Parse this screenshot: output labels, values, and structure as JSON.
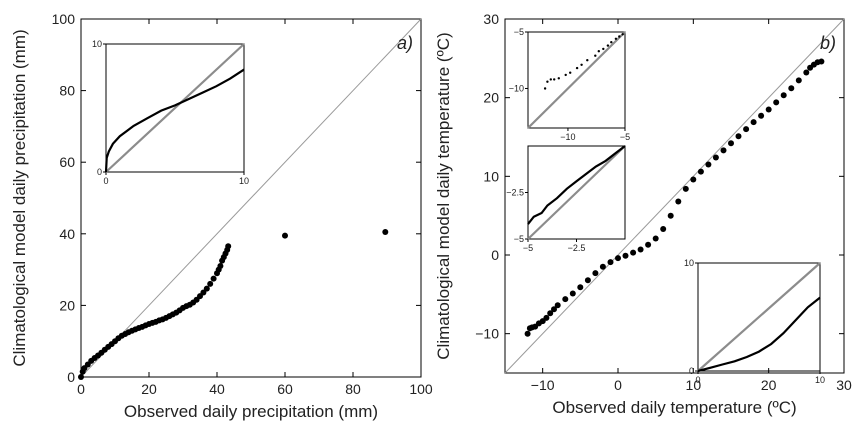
{
  "chart_data": [
    {
      "id": "a",
      "type": "scatter",
      "title": "",
      "panel_label": "a)",
      "xlabel": "Observed daily precipitation (mm)",
      "ylabel": "Climatological model daily precipitation (mm)",
      "xlim": [
        0,
        100
      ],
      "ylim": [
        0,
        100
      ],
      "xticks": [
        0,
        20,
        40,
        60,
        80,
        100
      ],
      "yticks": [
        0,
        20,
        40,
        60,
        80,
        100
      ],
      "reference_line": "1:1",
      "series": [
        {
          "points": [
            [
              0,
              0
            ],
            [
              0.5,
              1.5
            ],
            [
              1,
              2.5
            ],
            [
              2,
              3.5
            ],
            [
              3,
              4.5
            ],
            [
              4,
              5.3
            ],
            [
              5,
              6
            ],
            [
              6,
              6.8
            ],
            [
              7,
              7.6
            ],
            [
              8,
              8.4
            ],
            [
              9,
              9.2
            ],
            [
              10,
              10
            ],
            [
              11,
              10.8
            ],
            [
              12,
              11.5
            ],
            [
              13,
              12
            ],
            [
              14,
              12.5
            ],
            [
              15,
              12.9
            ],
            [
              16,
              13.3
            ],
            [
              17,
              13.7
            ],
            [
              18,
              14
            ],
            [
              19,
              14.4
            ],
            [
              20,
              14.8
            ],
            [
              21,
              15.1
            ],
            [
              22,
              15.4
            ],
            [
              23,
              15.8
            ],
            [
              24,
              16.1
            ],
            [
              25,
              16.5
            ],
            [
              26,
              17
            ],
            [
              27,
              17.5
            ],
            [
              28,
              18
            ],
            [
              29,
              18.6
            ],
            [
              30,
              19.3
            ],
            [
              31,
              19.8
            ],
            [
              32,
              20.2
            ],
            [
              33,
              20.8
            ],
            [
              34,
              21.6
            ],
            [
              35,
              22.6
            ],
            [
              36,
              23.6
            ],
            [
              37,
              24.7
            ],
            [
              38,
              26
            ],
            [
              39,
              27.5
            ],
            [
              40,
              29
            ],
            [
              40.5,
              30
            ],
            [
              41,
              31
            ],
            [
              41.5,
              32.5
            ],
            [
              42,
              33.5
            ],
            [
              42.5,
              34.5
            ],
            [
              43,
              35.5
            ],
            [
              43.3,
              36.5
            ],
            [
              60,
              39.5
            ],
            [
              89.5,
              40.5
            ]
          ]
        }
      ],
      "inset": {
        "xlim": [
          0,
          10
        ],
        "ylim": [
          0,
          10
        ],
        "xticks": [
          0,
          10
        ],
        "yticks": [
          0,
          10
        ],
        "reference_line": "1:1",
        "series": [
          {
            "style": "line",
            "points": [
              [
                0,
                0
              ],
              [
                0.05,
                1.1
              ],
              [
                0.2,
                1.6
              ],
              [
                0.5,
                2.2
              ],
              [
                1,
                2.8
              ],
              [
                2,
                3.6
              ],
              [
                3,
                4.2
              ],
              [
                4,
                4.8
              ],
              [
                5,
                5.2
              ],
              [
                6,
                5.7
              ],
              [
                7,
                6.2
              ],
              [
                8,
                6.7
              ],
              [
                9,
                7.3
              ],
              [
                10,
                8
              ]
            ]
          }
        ]
      }
    },
    {
      "id": "b",
      "type": "scatter",
      "title": "",
      "panel_label": "b)",
      "xlabel": "Observed daily temperature (ºC)",
      "ylabel": "Climatological model daily temperature (ºC)",
      "xlim": [
        -15,
        30
      ],
      "ylim": [
        -15,
        30
      ],
      "xticks": [
        -10,
        0,
        10,
        20,
        30
      ],
      "yticks": [
        -10,
        0,
        10,
        20,
        30
      ],
      "reference_line": "1:1",
      "series": [
        {
          "points": [
            [
              -12,
              -10
            ],
            [
              -11.7,
              -9.3
            ],
            [
              -11.4,
              -9.2
            ],
            [
              -11,
              -9.1
            ],
            [
              -10.5,
              -8.7
            ],
            [
              -10,
              -8.4
            ],
            [
              -9.5,
              -8
            ],
            [
              -9,
              -7.4
            ],
            [
              -8.5,
              -6.9
            ],
            [
              -8,
              -6.4
            ],
            [
              -7,
              -5.6
            ],
            [
              -6,
              -4.9
            ],
            [
              -5,
              -4.1
            ],
            [
              -4,
              -3.2
            ],
            [
              -3,
              -2.3
            ],
            [
              -2,
              -1.5
            ],
            [
              -1,
              -0.9
            ],
            [
              0,
              -0.4
            ],
            [
              1,
              -0.1
            ],
            [
              2,
              0.3
            ],
            [
              3,
              0.7
            ],
            [
              4,
              1.3
            ],
            [
              5,
              2.1
            ],
            [
              6,
              3.3
            ],
            [
              7,
              5
            ],
            [
              8,
              6.8
            ],
            [
              9,
              8.4
            ],
            [
              10,
              9.6
            ],
            [
              11,
              10.6
            ],
            [
              12,
              11.5
            ],
            [
              13,
              12.4
            ],
            [
              14,
              13.3
            ],
            [
              15,
              14.2
            ],
            [
              16,
              15.1
            ],
            [
              17,
              16
            ],
            [
              18,
              16.9
            ],
            [
              19,
              17.7
            ],
            [
              20,
              18.5
            ],
            [
              21,
              19.4
            ],
            [
              22,
              20.3
            ],
            [
              23,
              21.2
            ],
            [
              24,
              22.2
            ],
            [
              25,
              23.2
            ],
            [
              25.5,
              23.8
            ],
            [
              26,
              24.2
            ],
            [
              26.5,
              24.5
            ],
            [
              27,
              24.6
            ]
          ]
        }
      ],
      "insets": [
        {
          "xlim": [
            -13.5,
            -5
          ],
          "ylim": [
            -13.5,
            -5
          ],
          "xticks": [
            -10,
            -5
          ],
          "yticks": [
            -10,
            -5
          ],
          "reference_line": "1:1",
          "series": [
            {
              "style": "points",
              "points": [
                [
                  -12,
                  -10
                ],
                [
                  -11.8,
                  -9.4
                ],
                [
                  -11.5,
                  -9.2
                ],
                [
                  -11.2,
                  -9.2
                ],
                [
                  -10.8,
                  -9.1
                ],
                [
                  -10.2,
                  -8.8
                ],
                [
                  -9.8,
                  -8.6
                ],
                [
                  -9.2,
                  -8.2
                ],
                [
                  -8.8,
                  -7.9
                ],
                [
                  -8.3,
                  -7.5
                ],
                [
                  -7.6,
                  -7.1
                ],
                [
                  -7.3,
                  -6.7
                ],
                [
                  -6.9,
                  -6.5
                ],
                [
                  -6.5,
                  -6.2
                ],
                [
                  -6.2,
                  -5.9
                ],
                [
                  -5.8,
                  -5.6
                ],
                [
                  -5.5,
                  -5.4
                ],
                [
                  -5.2,
                  -5.2
                ]
              ]
            }
          ]
        },
        {
          "xlim": [
            -5,
            0
          ],
          "ylim": [
            -5,
            0
          ],
          "xticks": [
            -5,
            -2.5
          ],
          "yticks": [
            -5,
            -2.5
          ],
          "reference_line": "1:1",
          "series": [
            {
              "style": "line",
              "points": [
                [
                  -5,
                  -4.2
                ],
                [
                  -4.7,
                  -3.8
                ],
                [
                  -4.3,
                  -3.6
                ],
                [
                  -4,
                  -3.2
                ],
                [
                  -3.5,
                  -2.8
                ],
                [
                  -3,
                  -2.3
                ],
                [
                  -2.5,
                  -1.9
                ],
                [
                  -2,
                  -1.5
                ],
                [
                  -1.5,
                  -1.1
                ],
                [
                  -1,
                  -0.8
                ],
                [
                  -0.5,
                  -0.4
                ],
                [
                  0,
                  0
                ]
              ]
            }
          ]
        },
        {
          "xlim": [
            0,
            10
          ],
          "ylim": [
            0,
            10
          ],
          "xticks": [
            0,
            10
          ],
          "yticks": [
            0,
            10
          ],
          "reference_line": "1:1",
          "series": [
            {
              "style": "line",
              "points": [
                [
                  0,
                  0
                ],
                [
                  1,
                  0.3
                ],
                [
                  2,
                  0.6
                ],
                [
                  3,
                  0.9
                ],
                [
                  4,
                  1.3
                ],
                [
                  5,
                  1.8
                ],
                [
                  6,
                  2.5
                ],
                [
                  7,
                  3.5
                ],
                [
                  8,
                  4.7
                ],
                [
                  9,
                  5.9
                ],
                [
                  10,
                  6.8
                ]
              ]
            }
          ]
        }
      ]
    }
  ]
}
